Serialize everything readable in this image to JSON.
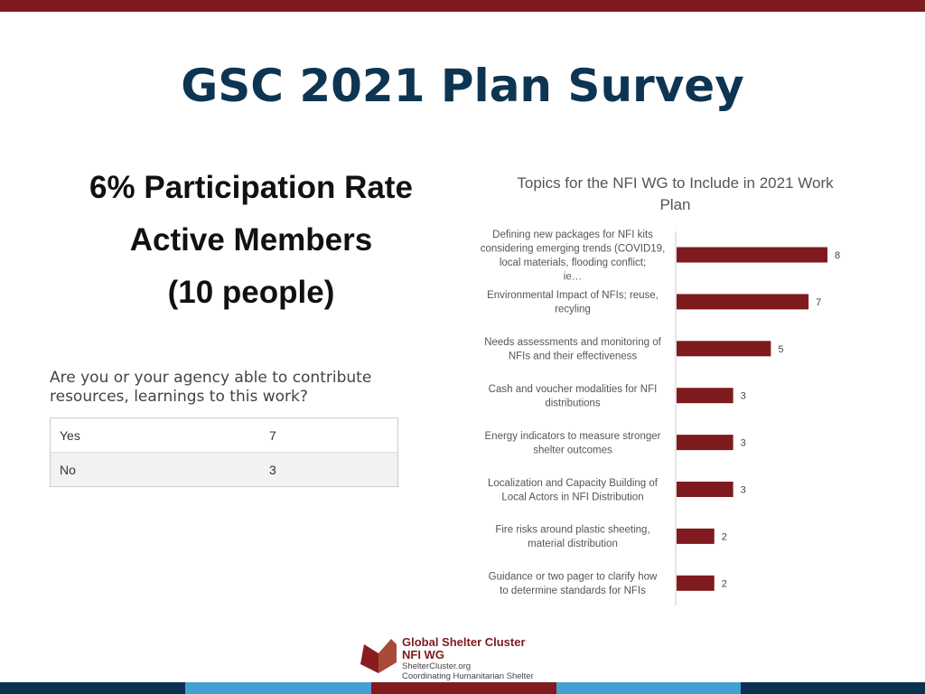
{
  "title": "GSC 2021 Plan Survey",
  "stats": {
    "participation": "6% Participation Rate",
    "active": "Active Members",
    "people": "(10 people)"
  },
  "question": {
    "text": "Are you or your agency able to contribute resources, learnings to this work?",
    "rows": [
      {
        "label": "Yes",
        "value": "7"
      },
      {
        "label": "No",
        "value": "3"
      }
    ]
  },
  "chart_data": {
    "type": "bar",
    "orientation": "horizontal",
    "title": "Topics for the NFI WG to Include in 2021 Work Plan",
    "categories": [
      "Defining new packages for NFI kits considering emerging trends (COVID19, local materials, flooding conflict; ie…",
      "Environmental Impact of NFIs; reuse, recyling",
      "Needs assessments and monitoring of NFIs and their effectiveness",
      "Cash and voucher modalities for NFI distributions",
      "Energy indicators to measure stronger shelter outcomes",
      "Localization and Capacity Building of Local Actors in NFI Distribution",
      "Fire risks around plastic sheeting, material distribution",
      "Guidance or two pager to clarify how to determine standards for NFIs"
    ],
    "values": [
      8,
      7,
      5,
      3,
      3,
      3,
      2,
      2
    ],
    "xlim": [
      0,
      8.4
    ],
    "grid": false,
    "bar_color": "#7f1a1e"
  },
  "footer": {
    "org": "Global Shelter Cluster",
    "wg": "NFI WG",
    "site": "ShelterCluster.org",
    "tagline": "Coordinating Humanitarian Shelter"
  }
}
